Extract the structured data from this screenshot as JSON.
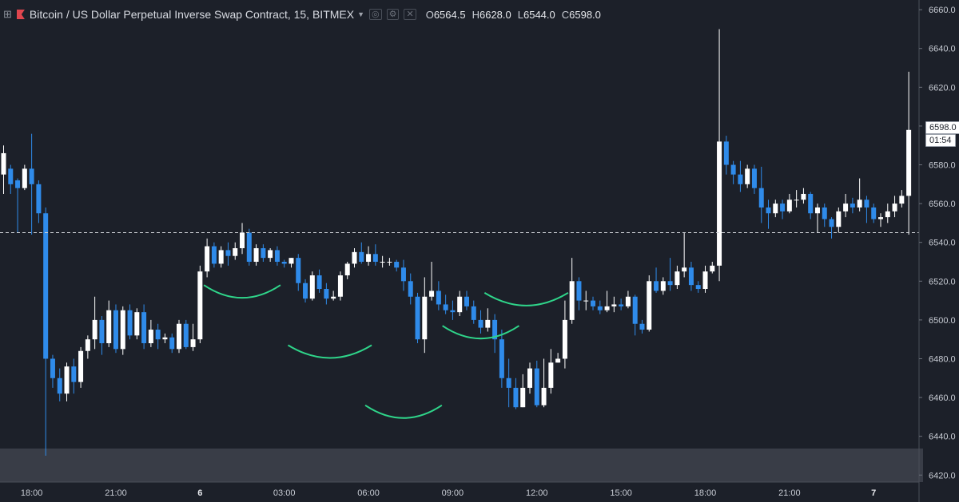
{
  "header": {
    "title": "Bitcoin / US Dollar Perpetual Inverse Swap Contract, 15, BITMEX",
    "ohlc": [
      {
        "key": "O",
        "value": "6564.5"
      },
      {
        "key": "H",
        "value": "6628.0"
      },
      {
        "key": "L",
        "value": "6544.0"
      },
      {
        "key": "C",
        "value": "6598.0"
      }
    ]
  },
  "price_tag": {
    "price": "6598.0",
    "countdown": "01:54"
  },
  "colors": {
    "background": "#1c2029",
    "up_candle": "#ffffff",
    "down_candle": "#2f8bea",
    "arc": "#2fd58a",
    "dashed_line": "#d0d3d9",
    "volume_band": "#393d47"
  },
  "chart_data": {
    "type": "candlestick",
    "symbol": "XBTUSD",
    "interval": "15",
    "y_ticks": [
      "6660.0",
      "6640.0",
      "6620.0",
      "6600.0",
      "6580.0",
      "6560.0",
      "6540.0",
      "6520.0",
      "6500.0",
      "6480.0",
      "6460.0",
      "6440.0",
      "6420.0"
    ],
    "ylim": [
      6416.4,
      6665.0
    ],
    "x_ticks": [
      {
        "label": "18:00",
        "index": 4,
        "bold": false
      },
      {
        "label": "21:00",
        "index": 16,
        "bold": false
      },
      {
        "label": "6",
        "index": 28,
        "bold": true
      },
      {
        "label": "03:00",
        "index": 40,
        "bold": false
      },
      {
        "label": "06:00",
        "index": 52,
        "bold": false
      },
      {
        "label": "09:00",
        "index": 64,
        "bold": false
      },
      {
        "label": "12:00",
        "index": 76,
        "bold": false
      },
      {
        "label": "15:00",
        "index": 88,
        "bold": false
      },
      {
        "label": "18:00",
        "index": 100,
        "bold": false
      },
      {
        "label": "21:00",
        "index": 112,
        "bold": false
      },
      {
        "label": "7",
        "index": 124,
        "bold": true
      }
    ],
    "horizontal_line": 6545,
    "candles": [
      [
        6575,
        6586,
        6565,
        6590
      ],
      [
        6578,
        6570,
        6565,
        6580
      ],
      [
        6572,
        6568,
        6545,
        6573
      ],
      [
        6568,
        6578,
        6567,
        6580
      ],
      [
        6578,
        6570,
        6544,
        6596
      ],
      [
        6570,
        6555,
        6550,
        6572
      ],
      [
        6555,
        6480,
        6430,
        6558
      ],
      [
        6480,
        6470,
        6465,
        6482
      ],
      [
        6470,
        6462,
        6458,
        6475
      ],
      [
        6462,
        6476,
        6458,
        6478
      ],
      [
        6476,
        6468,
        6462,
        6480
      ],
      [
        6468,
        6484,
        6465,
        6486
      ],
      [
        6484,
        6490,
        6480,
        6492
      ],
      [
        6490,
        6500,
        6485,
        6512
      ],
      [
        6500,
        6488,
        6482,
        6502
      ],
      [
        6488,
        6505,
        6486,
        6510
      ],
      [
        6505,
        6485,
        6483,
        6508
      ],
      [
        6485,
        6505,
        6482,
        6507
      ],
      [
        6505,
        6492,
        6490,
        6508
      ],
      [
        6492,
        6504,
        6490,
        6506
      ],
      [
        6504,
        6488,
        6485,
        6508
      ],
      [
        6488,
        6495,
        6486,
        6500
      ],
      [
        6495,
        6490,
        6485,
        6498
      ],
      [
        6490,
        6491,
        6488,
        6493
      ],
      [
        6491,
        6485,
        6483,
        6493
      ],
      [
        6485,
        6498,
        6483,
        6500
      ],
      [
        6498,
        6486,
        6485,
        6500
      ],
      [
        6486,
        6490,
        6484,
        6498
      ],
      [
        6490,
        6525,
        6488,
        6528
      ],
      [
        6525,
        6538,
        6522,
        6542
      ],
      [
        6538,
        6529,
        6527,
        6540
      ],
      [
        6529,
        6536,
        6527,
        6538
      ],
      [
        6536,
        6533,
        6528,
        6540
      ],
      [
        6533,
        6537,
        6531,
        6540
      ],
      [
        6537,
        6545,
        6534,
        6550
      ],
      [
        6545,
        6530,
        6528,
        6547
      ],
      [
        6530,
        6537,
        6528,
        6539
      ],
      [
        6537,
        6532,
        6530,
        6539
      ],
      [
        6532,
        6536,
        6530,
        6537
      ],
      [
        6536,
        6530,
        6528,
        6538
      ],
      [
        6530,
        6529,
        6527,
        6531
      ],
      [
        6529,
        6532,
        6527,
        6532
      ],
      [
        6532,
        6519,
        6515,
        6534
      ],
      [
        6519,
        6511,
        6509,
        6521
      ],
      [
        6511,
        6523,
        6510,
        6525
      ],
      [
        6523,
        6516,
        6514,
        6526
      ],
      [
        6516,
        6511,
        6508,
        6519
      ],
      [
        6511,
        6512,
        6510,
        6515
      ],
      [
        6512,
        6523,
        6510,
        6525
      ],
      [
        6523,
        6529,
        6521,
        6530
      ],
      [
        6529,
        6535,
        6527,
        6537
      ],
      [
        6535,
        6530,
        6529,
        6540
      ],
      [
        6530,
        6534,
        6528,
        6538
      ],
      [
        6534,
        6530,
        6528,
        6539
      ],
      [
        6530,
        6530,
        6527,
        6533
      ],
      [
        6530,
        6530,
        6528,
        6532
      ],
      [
        6530,
        6527,
        6525,
        6531
      ],
      [
        6527,
        6520,
        6515,
        6531
      ],
      [
        6520,
        6512,
        6508,
        6524
      ],
      [
        6512,
        6490,
        6488,
        6514
      ],
      [
        6490,
        6512,
        6483,
        6522
      ],
      [
        6512,
        6515,
        6510,
        6530
      ],
      [
        6515,
        6508,
        6505,
        6520
      ],
      [
        6508,
        6505,
        6503,
        6513
      ],
      [
        6505,
        6504,
        6500,
        6510
      ],
      [
        6504,
        6512,
        6502,
        6515
      ],
      [
        6512,
        6507,
        6505,
        6515
      ],
      [
        6507,
        6500,
        6498,
        6510
      ],
      [
        6500,
        6496,
        6493,
        6505
      ],
      [
        6496,
        6500,
        6494,
        6506
      ],
      [
        6500,
        6490,
        6483,
        6503
      ],
      [
        6490,
        6470,
        6465,
        6495
      ],
      [
        6470,
        6465,
        6455,
        6480
      ],
      [
        6465,
        6455,
        6454,
        6470
      ],
      [
        6455,
        6465,
        6455,
        6472
      ],
      [
        6465,
        6475,
        6462,
        6478
      ],
      [
        6475,
        6456,
        6455,
        6479
      ],
      [
        6456,
        6465,
        6455,
        6480
      ],
      [
        6465,
        6478,
        6462,
        6485
      ],
      [
        6478,
        6480,
        6478,
        6483
      ],
      [
        6480,
        6500,
        6475,
        6510
      ],
      [
        6500,
        6520,
        6498,
        6532
      ],
      [
        6520,
        6510,
        6505,
        6522
      ],
      [
        6510,
        6510,
        6505,
        6515
      ],
      [
        6510,
        6507,
        6505,
        6512
      ],
      [
        6507,
        6505,
        6503,
        6510
      ],
      [
        6505,
        6507,
        6504,
        6515
      ],
      [
        6507,
        6508,
        6504,
        6512
      ],
      [
        6508,
        6507,
        6505,
        6511
      ],
      [
        6507,
        6512,
        6506,
        6515
      ],
      [
        6512,
        6498,
        6492,
        6513
      ],
      [
        6498,
        6495,
        6493,
        6500
      ],
      [
        6495,
        6520,
        6494,
        6523
      ],
      [
        6520,
        6515,
        6514,
        6527
      ],
      [
        6515,
        6520,
        6513,
        6522
      ],
      [
        6520,
        6518,
        6515,
        6532
      ],
      [
        6518,
        6525,
        6516,
        6528
      ],
      [
        6525,
        6527,
        6522,
        6545
      ],
      [
        6527,
        6518,
        6515,
        6530
      ],
      [
        6518,
        6516,
        6514,
        6520
      ],
      [
        6516,
        6525,
        6514,
        6528
      ],
      [
        6525,
        6528,
        6524,
        6530
      ],
      [
        6528,
        6592,
        6520,
        6650
      ],
      [
        6592,
        6580,
        6575,
        6595
      ],
      [
        6580,
        6575,
        6570,
        6582
      ],
      [
        6575,
        6570,
        6566,
        6582
      ],
      [
        6570,
        6578,
        6568,
        6580
      ],
      [
        6578,
        6568,
        6565,
        6580
      ],
      [
        6568,
        6558,
        6550,
        6579
      ],
      [
        6558,
        6555,
        6547,
        6562
      ],
      [
        6555,
        6560,
        6553,
        6562
      ],
      [
        6560,
        6556,
        6552,
        6562
      ],
      [
        6556,
        6562,
        6555,
        6565
      ],
      [
        6562,
        6562,
        6558,
        6567
      ],
      [
        6562,
        6565,
        6560,
        6568
      ],
      [
        6565,
        6555,
        6552,
        6566
      ],
      [
        6555,
        6558,
        6545,
        6560
      ],
      [
        6558,
        6552,
        6548,
        6560
      ],
      [
        6552,
        6548,
        6542,
        6553
      ],
      [
        6548,
        6556,
        6545,
        6558
      ],
      [
        6556,
        6560,
        6553,
        6565
      ],
      [
        6560,
        6558,
        6555,
        6563
      ],
      [
        6558,
        6562,
        6556,
        6573
      ],
      [
        6562,
        6558,
        6550,
        6564
      ],
      [
        6558,
        6552,
        6550,
        6560
      ],
      [
        6552,
        6553,
        6548,
        6555
      ],
      [
        6553,
        6556,
        6550,
        6560
      ],
      [
        6556,
        6560,
        6553,
        6564
      ],
      [
        6560,
        6564,
        6558,
        6567
      ],
      [
        6564,
        6598,
        6544,
        6628
      ]
    ]
  }
}
